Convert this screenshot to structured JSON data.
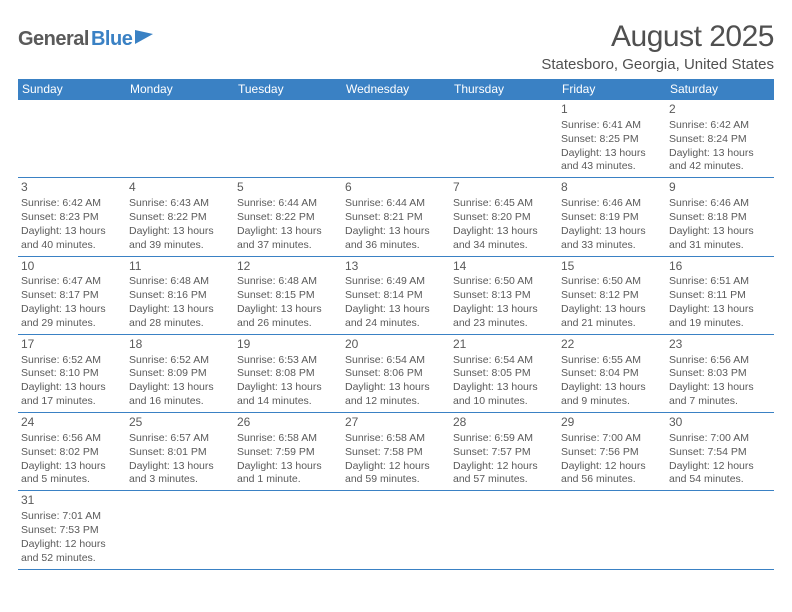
{
  "logo": {
    "part1": "General",
    "part2": "Blue"
  },
  "title": "August 2025",
  "location": "Statesboro, Georgia, United States",
  "style": {
    "header_bg": "#3a81c4",
    "header_text": "#ffffff",
    "border_color": "#3a81c4",
    "text_color": "#5a5a5a",
    "title_fontsize": 30,
    "location_fontsize": 15,
    "day_header_fontsize": 12,
    "cell_fontsize": 10.5,
    "page_bg": "#ffffff"
  },
  "day_headers": [
    "Sunday",
    "Monday",
    "Tuesday",
    "Wednesday",
    "Thursday",
    "Friday",
    "Saturday"
  ],
  "weeks": [
    [
      null,
      null,
      null,
      null,
      null,
      {
        "n": "1",
        "sr": "Sunrise: 6:41 AM",
        "ss": "Sunset: 8:25 PM",
        "d1": "Daylight: 13 hours",
        "d2": "and 43 minutes."
      },
      {
        "n": "2",
        "sr": "Sunrise: 6:42 AM",
        "ss": "Sunset: 8:24 PM",
        "d1": "Daylight: 13 hours",
        "d2": "and 42 minutes."
      }
    ],
    [
      {
        "n": "3",
        "sr": "Sunrise: 6:42 AM",
        "ss": "Sunset: 8:23 PM",
        "d1": "Daylight: 13 hours",
        "d2": "and 40 minutes."
      },
      {
        "n": "4",
        "sr": "Sunrise: 6:43 AM",
        "ss": "Sunset: 8:22 PM",
        "d1": "Daylight: 13 hours",
        "d2": "and 39 minutes."
      },
      {
        "n": "5",
        "sr": "Sunrise: 6:44 AM",
        "ss": "Sunset: 8:22 PM",
        "d1": "Daylight: 13 hours",
        "d2": "and 37 minutes."
      },
      {
        "n": "6",
        "sr": "Sunrise: 6:44 AM",
        "ss": "Sunset: 8:21 PM",
        "d1": "Daylight: 13 hours",
        "d2": "and 36 minutes."
      },
      {
        "n": "7",
        "sr": "Sunrise: 6:45 AM",
        "ss": "Sunset: 8:20 PM",
        "d1": "Daylight: 13 hours",
        "d2": "and 34 minutes."
      },
      {
        "n": "8",
        "sr": "Sunrise: 6:46 AM",
        "ss": "Sunset: 8:19 PM",
        "d1": "Daylight: 13 hours",
        "d2": "and 33 minutes."
      },
      {
        "n": "9",
        "sr": "Sunrise: 6:46 AM",
        "ss": "Sunset: 8:18 PM",
        "d1": "Daylight: 13 hours",
        "d2": "and 31 minutes."
      }
    ],
    [
      {
        "n": "10",
        "sr": "Sunrise: 6:47 AM",
        "ss": "Sunset: 8:17 PM",
        "d1": "Daylight: 13 hours",
        "d2": "and 29 minutes."
      },
      {
        "n": "11",
        "sr": "Sunrise: 6:48 AM",
        "ss": "Sunset: 8:16 PM",
        "d1": "Daylight: 13 hours",
        "d2": "and 28 minutes."
      },
      {
        "n": "12",
        "sr": "Sunrise: 6:48 AM",
        "ss": "Sunset: 8:15 PM",
        "d1": "Daylight: 13 hours",
        "d2": "and 26 minutes."
      },
      {
        "n": "13",
        "sr": "Sunrise: 6:49 AM",
        "ss": "Sunset: 8:14 PM",
        "d1": "Daylight: 13 hours",
        "d2": "and 24 minutes."
      },
      {
        "n": "14",
        "sr": "Sunrise: 6:50 AM",
        "ss": "Sunset: 8:13 PM",
        "d1": "Daylight: 13 hours",
        "d2": "and 23 minutes."
      },
      {
        "n": "15",
        "sr": "Sunrise: 6:50 AM",
        "ss": "Sunset: 8:12 PM",
        "d1": "Daylight: 13 hours",
        "d2": "and 21 minutes."
      },
      {
        "n": "16",
        "sr": "Sunrise: 6:51 AM",
        "ss": "Sunset: 8:11 PM",
        "d1": "Daylight: 13 hours",
        "d2": "and 19 minutes."
      }
    ],
    [
      {
        "n": "17",
        "sr": "Sunrise: 6:52 AM",
        "ss": "Sunset: 8:10 PM",
        "d1": "Daylight: 13 hours",
        "d2": "and 17 minutes."
      },
      {
        "n": "18",
        "sr": "Sunrise: 6:52 AM",
        "ss": "Sunset: 8:09 PM",
        "d1": "Daylight: 13 hours",
        "d2": "and 16 minutes."
      },
      {
        "n": "19",
        "sr": "Sunrise: 6:53 AM",
        "ss": "Sunset: 8:08 PM",
        "d1": "Daylight: 13 hours",
        "d2": "and 14 minutes."
      },
      {
        "n": "20",
        "sr": "Sunrise: 6:54 AM",
        "ss": "Sunset: 8:06 PM",
        "d1": "Daylight: 13 hours",
        "d2": "and 12 minutes."
      },
      {
        "n": "21",
        "sr": "Sunrise: 6:54 AM",
        "ss": "Sunset: 8:05 PM",
        "d1": "Daylight: 13 hours",
        "d2": "and 10 minutes."
      },
      {
        "n": "22",
        "sr": "Sunrise: 6:55 AM",
        "ss": "Sunset: 8:04 PM",
        "d1": "Daylight: 13 hours",
        "d2": "and 9 minutes."
      },
      {
        "n": "23",
        "sr": "Sunrise: 6:56 AM",
        "ss": "Sunset: 8:03 PM",
        "d1": "Daylight: 13 hours",
        "d2": "and 7 minutes."
      }
    ],
    [
      {
        "n": "24",
        "sr": "Sunrise: 6:56 AM",
        "ss": "Sunset: 8:02 PM",
        "d1": "Daylight: 13 hours",
        "d2": "and 5 minutes."
      },
      {
        "n": "25",
        "sr": "Sunrise: 6:57 AM",
        "ss": "Sunset: 8:01 PM",
        "d1": "Daylight: 13 hours",
        "d2": "and 3 minutes."
      },
      {
        "n": "26",
        "sr": "Sunrise: 6:58 AM",
        "ss": "Sunset: 7:59 PM",
        "d1": "Daylight: 13 hours",
        "d2": "and 1 minute."
      },
      {
        "n": "27",
        "sr": "Sunrise: 6:58 AM",
        "ss": "Sunset: 7:58 PM",
        "d1": "Daylight: 12 hours",
        "d2": "and 59 minutes."
      },
      {
        "n": "28",
        "sr": "Sunrise: 6:59 AM",
        "ss": "Sunset: 7:57 PM",
        "d1": "Daylight: 12 hours",
        "d2": "and 57 minutes."
      },
      {
        "n": "29",
        "sr": "Sunrise: 7:00 AM",
        "ss": "Sunset: 7:56 PM",
        "d1": "Daylight: 12 hours",
        "d2": "and 56 minutes."
      },
      {
        "n": "30",
        "sr": "Sunrise: 7:00 AM",
        "ss": "Sunset: 7:54 PM",
        "d1": "Daylight: 12 hours",
        "d2": "and 54 minutes."
      }
    ],
    [
      {
        "n": "31",
        "sr": "Sunrise: 7:01 AM",
        "ss": "Sunset: 7:53 PM",
        "d1": "Daylight: 12 hours",
        "d2": "and 52 minutes."
      },
      null,
      null,
      null,
      null,
      null,
      null
    ]
  ]
}
